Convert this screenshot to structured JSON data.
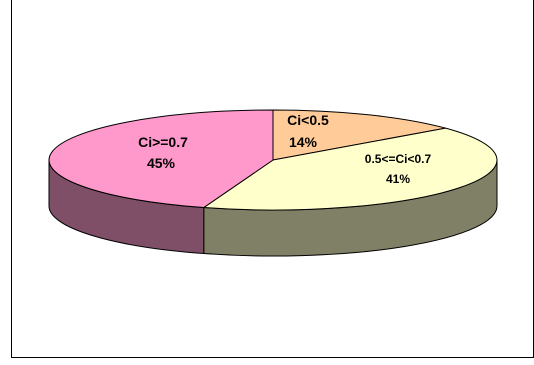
{
  "chart_data": {
    "type": "pie",
    "title": "",
    "three_d": true,
    "legend": "none",
    "slices": [
      {
        "label": "Ci<0.5",
        "value": 14,
        "percent_label": "14%",
        "color": "#FFCC99",
        "side_color": "#B2926E"
      },
      {
        "label": "0.5<=Ci<0.7",
        "value": 41,
        "percent_label": "41%",
        "color": "#FFFFCC",
        "side_color": "#808066"
      },
      {
        "label": "Ci>=0.7",
        "value": 45,
        "percent_label": "45%",
        "color": "#FF99CC",
        "side_color": "#7E4F67"
      }
    ]
  }
}
